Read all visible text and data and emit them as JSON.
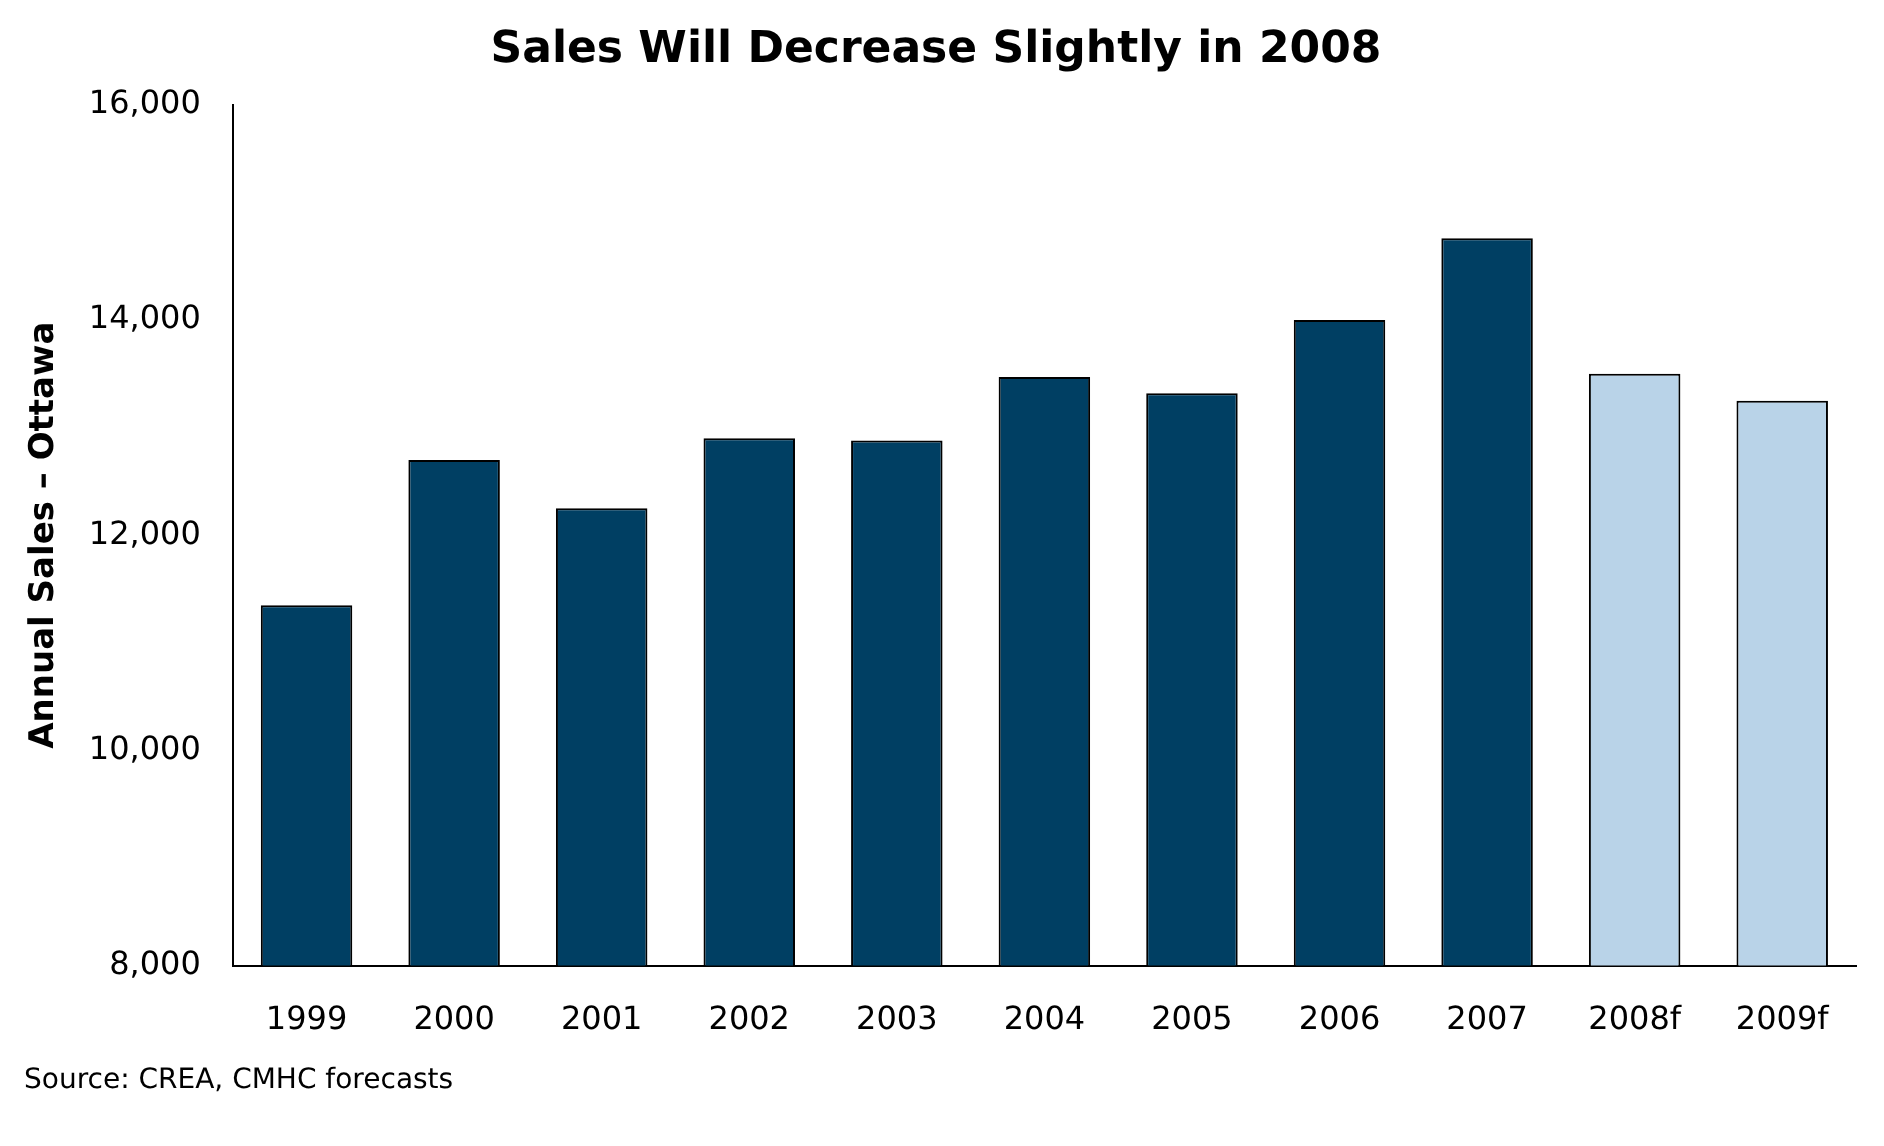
{
  "chart_data": {
    "type": "bar",
    "title": "Sales Will Decrease Slightly in 2008",
    "ylabel": "Annual Sales – Ottawa",
    "categories": [
      "1999",
      "2000",
      "2001",
      "2002",
      "2003",
      "2004",
      "2005",
      "2006",
      "2007",
      "2008f",
      "2009f"
    ],
    "values": [
      11350,
      12700,
      12250,
      12900,
      12880,
      13470,
      13320,
      14000,
      14760,
      13500,
      13250
    ],
    "colors": [
      "#003f63",
      "#003f63",
      "#003f63",
      "#003f63",
      "#003f63",
      "#003f63",
      "#003f63",
      "#003f63",
      "#003f63",
      "#b9d3e8",
      "#b9d3e8"
    ],
    "ylim": [
      8000,
      16000
    ],
    "yticks": [
      {
        "value": 8000,
        "label": "8,000"
      },
      {
        "value": 10000,
        "label": "10,000"
      },
      {
        "value": 12000,
        "label": "12,000"
      },
      {
        "value": 14000,
        "label": "14,000"
      },
      {
        "value": 16000,
        "label": "16,000"
      }
    ],
    "grid": false,
    "legend": false,
    "annotations": [
      "Source: CREA, CMHC forecasts"
    ]
  }
}
